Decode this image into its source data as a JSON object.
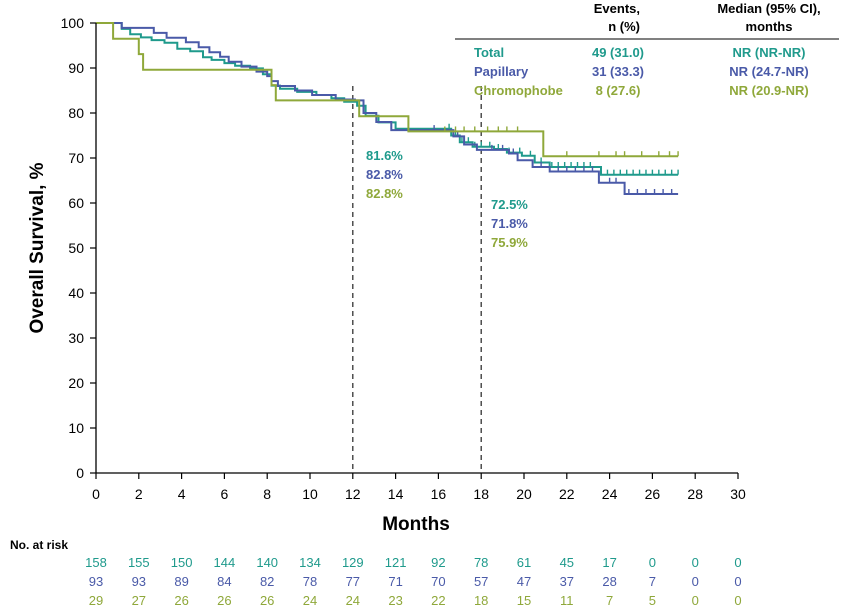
{
  "colors": {
    "total": "#1f9a8c",
    "papillary": "#4a5aa8",
    "chromophobe": "#8fa83a",
    "axis": "#000000"
  },
  "chart_data": {
    "type": "line",
    "subtype": "kaplan-meier",
    "xlabel": "Months",
    "ylabel": "Overall Survival, %",
    "xlim": [
      0,
      30
    ],
    "ylim": [
      0,
      100
    ],
    "xticks": [
      0,
      2,
      4,
      6,
      8,
      10,
      12,
      14,
      16,
      18,
      20,
      22,
      24,
      26,
      28,
      30
    ],
    "yticks": [
      0,
      10,
      20,
      30,
      40,
      50,
      60,
      70,
      80,
      90,
      100
    ],
    "reference_lines_x": [
      12,
      18
    ],
    "legend_table": {
      "col_events": [
        "Events,",
        "n (%)"
      ],
      "col_median": [
        "Median (95% CI),",
        "months"
      ]
    },
    "series": [
      {
        "name": "Total",
        "color_key": "total",
        "events": "49 (31.0)",
        "median": "NR (NR-NR)",
        "steps": [
          [
            0,
            100
          ],
          [
            0.8,
            100
          ],
          [
            1.2,
            98.7
          ],
          [
            1.6,
            97.5
          ],
          [
            2.1,
            96.8
          ],
          [
            2.6,
            96.2
          ],
          [
            3.2,
            95.6
          ],
          [
            3.8,
            94.3
          ],
          [
            4.4,
            93.7
          ],
          [
            5.0,
            92.4
          ],
          [
            5.4,
            91.8
          ],
          [
            6.0,
            91.1
          ],
          [
            6.5,
            90.5
          ],
          [
            7.2,
            89.9
          ],
          [
            7.8,
            88.6
          ],
          [
            8.2,
            86.1
          ],
          [
            8.6,
            85.4
          ],
          [
            9.4,
            84.7
          ],
          [
            10.3,
            84.0
          ],
          [
            11.0,
            83.3
          ],
          [
            11.6,
            82.5
          ],
          [
            12.2,
            81.6
          ],
          [
            12.6,
            79.4
          ],
          [
            13.2,
            77.9
          ],
          [
            14.0,
            76.5
          ],
          [
            16.3,
            76.5
          ],
          [
            16.6,
            75.0
          ],
          [
            17.0,
            73.5
          ],
          [
            17.6,
            72.5
          ],
          [
            18.6,
            72.0
          ],
          [
            19.2,
            71.2
          ],
          [
            19.9,
            70.5
          ],
          [
            20.5,
            69.0
          ],
          [
            21.2,
            68.0
          ],
          [
            23.4,
            68.0
          ],
          [
            23.6,
            66.3
          ],
          [
            27.2,
            66.3
          ]
        ],
        "censored": [
          16.5,
          16.8,
          17.1,
          17.4,
          17.7,
          18.0,
          18.4,
          18.8,
          19.3,
          19.8,
          20.3,
          20.8,
          21.3,
          21.6,
          21.9,
          22.2,
          22.5,
          22.8,
          23.1,
          23.9,
          24.2,
          24.5,
          24.8,
          25.1,
          25.4,
          25.7,
          26.0,
          26.3,
          26.6,
          26.9,
          27.2
        ],
        "landmarks": [
          81.6,
          72.5
        ]
      },
      {
        "name": "Papillary",
        "color_key": "papillary",
        "events": "31 (33.3)",
        "median": "NR (24.7-NR)",
        "steps": [
          [
            0,
            100
          ],
          [
            0.9,
            100
          ],
          [
            1.2,
            98.9
          ],
          [
            2.7,
            97.8
          ],
          [
            3.3,
            96.7
          ],
          [
            4.2,
            95.7
          ],
          [
            4.8,
            94.6
          ],
          [
            5.3,
            93.5
          ],
          [
            5.8,
            92.5
          ],
          [
            6.2,
            91.4
          ],
          [
            6.8,
            90.3
          ],
          [
            7.5,
            89.2
          ],
          [
            8.0,
            88.2
          ],
          [
            8.2,
            87.1
          ],
          [
            8.5,
            86.0
          ],
          [
            9.3,
            85.0
          ],
          [
            10.1,
            84.0
          ],
          [
            11.2,
            83.0
          ],
          [
            12.1,
            82.8
          ],
          [
            12.5,
            80.0
          ],
          [
            13.1,
            78.0
          ],
          [
            13.8,
            76.2
          ],
          [
            16.4,
            76.2
          ],
          [
            16.7,
            74.8
          ],
          [
            17.2,
            73.0
          ],
          [
            17.8,
            71.8
          ],
          [
            19.3,
            71.0
          ],
          [
            19.7,
            69.5
          ],
          [
            20.4,
            68.0
          ],
          [
            21.2,
            67.0
          ],
          [
            23.0,
            67.0
          ],
          [
            23.5,
            64.5
          ],
          [
            24.7,
            62.0
          ],
          [
            27.2,
            62.0
          ]
        ],
        "censored": [
          15.8,
          16.9,
          18.5,
          19.0,
          19.5,
          20.8,
          21.6,
          22.0,
          22.4,
          22.8,
          23.2,
          24.0,
          24.3,
          24.9,
          25.3,
          25.7,
          26.1,
          26.5,
          26.9
        ],
        "landmarks": [
          82.8,
          71.8
        ]
      },
      {
        "name": "Chromophobe",
        "color_key": "chromophobe",
        "events": "8 (27.6)",
        "median": "NR (20.9-NR)",
        "steps": [
          [
            0,
            100
          ],
          [
            0.8,
            100
          ],
          [
            0.8,
            96.5
          ],
          [
            2.0,
            96.5
          ],
          [
            2.0,
            93.1
          ],
          [
            2.2,
            89.6
          ],
          [
            8.2,
            89.6
          ],
          [
            8.2,
            86.2
          ],
          [
            8.4,
            82.8
          ],
          [
            12.3,
            82.8
          ],
          [
            12.3,
            79.3
          ],
          [
            14.6,
            79.3
          ],
          [
            14.6,
            75.9
          ],
          [
            20.9,
            75.9
          ],
          [
            20.9,
            70.4
          ],
          [
            27.2,
            70.4
          ]
        ],
        "censored": [
          16.3,
          16.8,
          17.2,
          17.7,
          18.3,
          18.8,
          19.2,
          19.7,
          22.0,
          23.5,
          24.3,
          24.7,
          25.5,
          26.3,
          26.8,
          27.2
        ],
        "landmarks": [
          82.8,
          75.9
        ]
      }
    ],
    "risk_table": {
      "title": "No. at risk",
      "months": [
        0,
        2,
        4,
        6,
        8,
        10,
        12,
        14,
        16,
        18,
        20,
        22,
        24,
        26,
        28,
        30
      ],
      "rows": [
        {
          "color_key": "total",
          "values": [
            "158",
            "155",
            "150",
            "144",
            "140",
            "134",
            "129",
            "121",
            "92",
            "78",
            "61",
            "45",
            "17",
            "0",
            "0",
            "0"
          ]
        },
        {
          "color_key": "papillary",
          "values": [
            "93",
            "93",
            "89",
            "84",
            "82",
            "78",
            "77",
            "71",
            "70",
            "57",
            "47",
            "37",
            "28",
            "7",
            "0",
            "0"
          ]
        },
        {
          "color_key": "chromophobe",
          "values": [
            "29",
            "27",
            "26",
            "26",
            "26",
            "24",
            "24",
            "23",
            "22",
            "18",
            "15",
            "11",
            "7",
            "5",
            "0",
            "0"
          ]
        }
      ]
    }
  }
}
